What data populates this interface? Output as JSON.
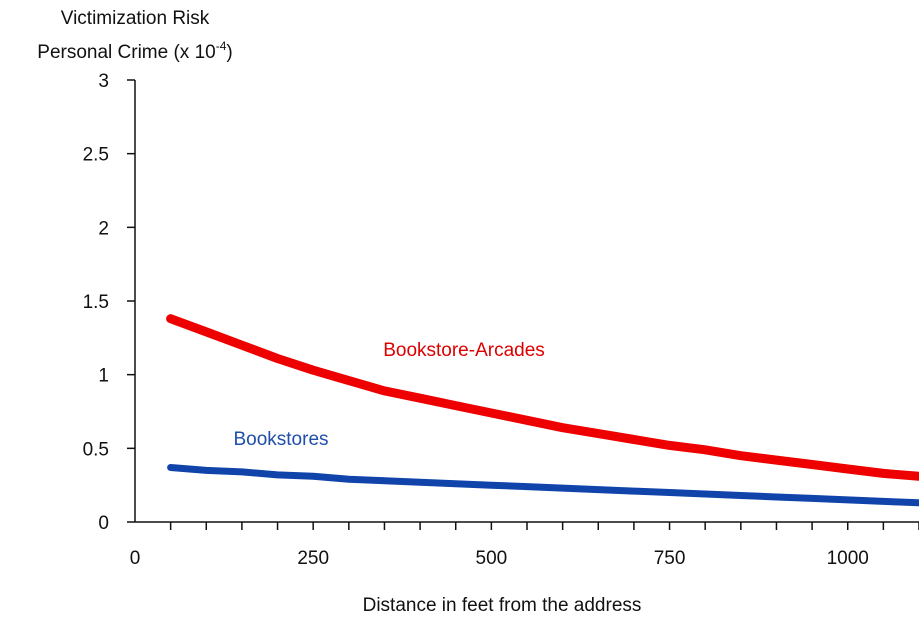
{
  "chart_data": {
    "type": "line",
    "ylabel_line1": "Victimization Risk",
    "ylabel_line2_prefix": "Personal Crime (x 10",
    "ylabel_line2_exp": "-4",
    "ylabel_line2_suffix": ")",
    "xlabel": "Distance in feet from the address",
    "xlim": [
      0,
      1100
    ],
    "ylim": [
      0,
      3
    ],
    "x_ticks": [
      0,
      250,
      500,
      750,
      1000
    ],
    "x_tick_labels": [
      "0",
      "250",
      "500",
      "750",
      "1000"
    ],
    "x_minor_step": 50,
    "y_ticks": [
      0,
      0.5,
      1,
      1.5,
      2,
      2.5,
      3
    ],
    "y_tick_labels": [
      "0",
      "0.5",
      "1",
      "1.5",
      "2",
      "2.5",
      "3"
    ],
    "grid": false,
    "series": [
      {
        "name": "Bookstore-Arcades",
        "color": "#ee0000",
        "x": [
          50,
          100,
          150,
          200,
          250,
          300,
          350,
          400,
          450,
          500,
          550,
          600,
          650,
          700,
          750,
          800,
          850,
          900,
          950,
          1000,
          1050,
          1100
        ],
        "y": [
          1.38,
          1.29,
          1.2,
          1.11,
          1.03,
          0.96,
          0.89,
          0.84,
          0.79,
          0.74,
          0.69,
          0.64,
          0.6,
          0.56,
          0.52,
          0.49,
          0.45,
          0.42,
          0.39,
          0.36,
          0.33,
          0.31
        ]
      },
      {
        "name": "Bookstores",
        "color": "#1144aa",
        "x": [
          50,
          100,
          150,
          200,
          250,
          300,
          350,
          400,
          450,
          500,
          550,
          600,
          650,
          700,
          750,
          800,
          850,
          900,
          950,
          1000,
          1050,
          1100
        ],
        "y": [
          0.37,
          0.35,
          0.34,
          0.32,
          0.31,
          0.29,
          0.28,
          0.27,
          0.26,
          0.25,
          0.24,
          0.23,
          0.22,
          0.21,
          0.2,
          0.19,
          0.18,
          0.17,
          0.16,
          0.15,
          0.14,
          0.13
        ]
      }
    ]
  }
}
